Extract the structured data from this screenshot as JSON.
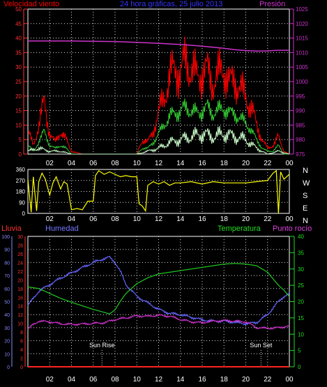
{
  "colors": {
    "wind_gust": "#ff0000",
    "wind_avg": "#33cc33",
    "wind_min": "#ccffcc",
    "pressure": "#cc33cc",
    "direction": "#ffff00",
    "rain": "#ff2222",
    "humidity": "#6666ff",
    "temperature": "#22cc22",
    "dewpoint": "#cc33cc",
    "grid": "#dddddd",
    "axis_label": "#ffffff"
  },
  "chart_data": [
    {
      "type": "line",
      "id": "wind_pressure",
      "title": "24 hora gráficas, 25 julio 2013",
      "left_axis_title": "Velocidad viento",
      "right_axis_title": "Presión",
      "x_ticks": [
        "02",
        "04",
        "06",
        "08",
        "10",
        "12",
        "14",
        "16",
        "18",
        "20",
        "22",
        "00"
      ],
      "xlim": [
        0,
        24
      ],
      "y_left_ticks": [
        "0",
        "5",
        "10",
        "15",
        "20",
        "25",
        "30",
        "35",
        "40",
        "45",
        "50"
      ],
      "y_left_lim": [
        0,
        50
      ],
      "y_right_ticks": [
        "975",
        "980",
        "985",
        "990",
        "995",
        "1000",
        "1005",
        "1010",
        "1015",
        "1020",
        "1025"
      ],
      "y_right_lim": [
        975,
        1025
      ],
      "series": [
        {
          "role": "wind_gust",
          "x": [
            0,
            0.5,
            1,
            1.5,
            2,
            2.5,
            3,
            3.5,
            4,
            5,
            6,
            7,
            8,
            9,
            10,
            10.5,
            11,
            11.5,
            12,
            12.5,
            13,
            13.5,
            14,
            14.5,
            15,
            15.5,
            16,
            16.5,
            17,
            17.5,
            18,
            18.5,
            19,
            19.5,
            20,
            20.5,
            21,
            21.5,
            22,
            22.5,
            23,
            23.5,
            24
          ],
          "values": [
            8,
            3,
            10,
            18,
            7,
            4,
            8,
            5,
            1,
            0,
            0,
            0,
            0,
            0,
            0,
            5,
            4,
            8,
            14,
            20,
            26,
            30,
            28,
            32,
            30,
            26,
            29,
            28,
            25,
            27,
            30,
            24,
            26,
            22,
            20,
            16,
            10,
            5,
            2,
            3,
            6,
            1,
            0
          ]
        },
        {
          "role": "wind_avg",
          "x": [
            0,
            0.5,
            1,
            1.5,
            2,
            2.5,
            3,
            3.5,
            4,
            5,
            6,
            7,
            8,
            9,
            10,
            10.5,
            11,
            11.5,
            12,
            12.5,
            13,
            13.5,
            14,
            14.5,
            15,
            15.5,
            16,
            16.5,
            17,
            17.5,
            18,
            18.5,
            19,
            19.5,
            20,
            20.5,
            21,
            21.5,
            22,
            22.5,
            23,
            23.5,
            24
          ],
          "values": [
            3,
            1,
            4,
            8,
            3,
            2,
            3,
            2,
            0,
            0,
            0,
            0,
            0,
            0,
            0,
            2,
            2,
            4,
            7,
            10,
            13,
            14,
            15,
            16,
            15,
            14,
            15,
            16,
            14,
            15,
            16,
            14,
            14,
            12,
            11,
            8,
            5,
            2,
            1,
            1,
            3,
            0,
            0
          ]
        },
        {
          "role": "wind_min",
          "x": [
            0,
            1,
            2,
            3,
            4,
            5,
            10,
            11,
            12,
            13,
            14,
            15,
            16,
            17,
            18,
            19,
            20,
            21,
            22,
            23,
            24
          ],
          "values": [
            1,
            2,
            1,
            1,
            0,
            0,
            0,
            1,
            2,
            4,
            5,
            6,
            7,
            6,
            7,
            6,
            5,
            2,
            0,
            1,
            0
          ]
        },
        {
          "role": "pressure",
          "axis": "right",
          "x": [
            0,
            2,
            4,
            6,
            8,
            10,
            12,
            14,
            16,
            18,
            19,
            20,
            21,
            22,
            23,
            24
          ],
          "values": [
            1014,
            1014,
            1014,
            1013.9,
            1013.8,
            1013.5,
            1013.2,
            1012.8,
            1012.2,
            1011.5,
            1011,
            1010.7,
            1010.5,
            1010.6,
            1010.8,
            1010.8
          ]
        }
      ]
    },
    {
      "type": "line",
      "id": "wind_direction",
      "x_ticks": [
        "02",
        "04",
        "06",
        "08",
        "10",
        "12",
        "14",
        "16",
        "18",
        "20",
        "22",
        "00"
      ],
      "xlim": [
        0,
        24
      ],
      "y_ticks": [
        "0",
        "90",
        "180",
        "270",
        "360"
      ],
      "ylim": [
        0,
        360
      ],
      "compass_labels": [
        "N",
        "W",
        "S",
        "E",
        "N"
      ],
      "series": [
        {
          "role": "direction",
          "x": [
            0,
            0.3,
            0.5,
            0.8,
            1,
            1.3,
            1.6,
            2,
            2.3,
            2.6,
            3,
            3.3,
            3.6,
            4,
            4.5,
            5,
            5.5,
            6,
            6.2,
            6.5,
            7,
            7.5,
            8,
            8.5,
            9,
            9.5,
            10,
            10.2,
            10.5,
            10.8,
            11,
            11.5,
            12,
            12.5,
            13,
            13.5,
            14,
            15,
            16,
            17,
            18,
            19,
            20,
            21,
            22,
            22.5,
            22.8,
            23,
            23.2,
            23.5,
            24
          ],
          "values": [
            280,
            10,
            300,
            20,
            260,
            330,
            280,
            150,
            250,
            300,
            200,
            260,
            240,
            30,
            40,
            30,
            100,
            100,
            310,
            350,
            320,
            340,
            320,
            300,
            310,
            300,
            300,
            80,
            60,
            20,
            230,
            260,
            240,
            260,
            230,
            250,
            250,
            260,
            240,
            260,
            250,
            250,
            250,
            260,
            270,
            330,
            350,
            0,
            340,
            280,
            320
          ]
        }
      ]
    },
    {
      "type": "line",
      "id": "rain_humidity_temp",
      "left_axis_titles": [
        "Lluvia",
        "Humedad"
      ],
      "right_axis_titles": [
        "Temperatura",
        "Punto rocío"
      ],
      "x_ticks": [
        "02",
        "04",
        "06",
        "08",
        "10",
        "12",
        "14",
        "16",
        "18",
        "20",
        "22",
        "00"
      ],
      "xlim": [
        0,
        24
      ],
      "y_humidity_ticks": [
        "0",
        "10",
        "20",
        "30",
        "40",
        "50",
        "60",
        "70",
        "80",
        "90",
        "100"
      ],
      "y_humidity_lim": [
        0,
        100
      ],
      "y_rain_ticks": [
        "0",
        "2",
        "4",
        "6",
        "8",
        "10",
        "12",
        "14",
        "16",
        "18",
        "20",
        "22",
        "24",
        "26",
        "28",
        "30"
      ],
      "y_rain_lim": [
        0,
        30
      ],
      "y_temp_ticks": [
        "0",
        "5",
        "10",
        "15",
        "20",
        "25",
        "30",
        "35",
        "40"
      ],
      "y_temp_lim": [
        0,
        40
      ],
      "annotations": [
        {
          "label": "Sun Rise",
          "x": 6.8
        },
        {
          "label": "Sun Set",
          "x": 21.4
        }
      ],
      "series": [
        {
          "role": "humidity",
          "axis": "humidity",
          "x": [
            0,
            1,
            2,
            3,
            4,
            5,
            6,
            7,
            7.5,
            8,
            8.5,
            9,
            10,
            11,
            12,
            13,
            14,
            15,
            16,
            17,
            18,
            19,
            20,
            21,
            22,
            22.5,
            23,
            23.5,
            24
          ],
          "values": [
            47,
            58,
            63,
            68,
            72,
            76,
            80,
            83,
            84,
            80,
            73,
            63,
            54,
            49,
            44,
            41,
            40,
            38,
            36,
            35,
            35,
            34,
            33,
            34,
            40,
            45,
            50,
            54,
            56
          ]
        },
        {
          "role": "temperature",
          "axis": "temperature",
          "x": [
            0,
            1,
            2,
            3,
            4,
            5,
            6,
            7,
            7.5,
            8,
            8.5,
            9,
            10,
            11,
            12,
            13,
            14,
            15,
            16,
            17,
            18,
            19,
            20,
            21,
            22,
            22.5,
            23,
            23.5,
            24
          ],
          "values": [
            24.5,
            24,
            22.5,
            21,
            19.8,
            18.7,
            17.6,
            16.7,
            16.2,
            17.5,
            20.2,
            22.5,
            25.5,
            27.3,
            28.5,
            29,
            29.5,
            30,
            30.5,
            31,
            31.5,
            31.7,
            31.5,
            31,
            29,
            27,
            25,
            23.5,
            21.5
          ]
        },
        {
          "role": "dewpoint",
          "axis": "temperature",
          "x": [
            0,
            0.5,
            1,
            2,
            3,
            4,
            5,
            6,
            7,
            8,
            9,
            10,
            11,
            12,
            13,
            14,
            15,
            16,
            17,
            18,
            19,
            20,
            21,
            22,
            23,
            24
          ],
          "values": [
            11.5,
            13,
            14,
            13.8,
            13.2,
            13,
            13.1,
            13.3,
            13.5,
            14.5,
            15,
            15.6,
            15.5,
            15.8,
            15.5,
            14.5,
            13.8,
            13.5,
            14,
            14.2,
            14,
            13.8,
            12,
            11.8,
            12,
            12.5
          ]
        },
        {
          "role": "rain",
          "axis": "rain",
          "x": [
            0,
            24
          ],
          "values": [
            0,
            0
          ]
        }
      ]
    }
  ]
}
